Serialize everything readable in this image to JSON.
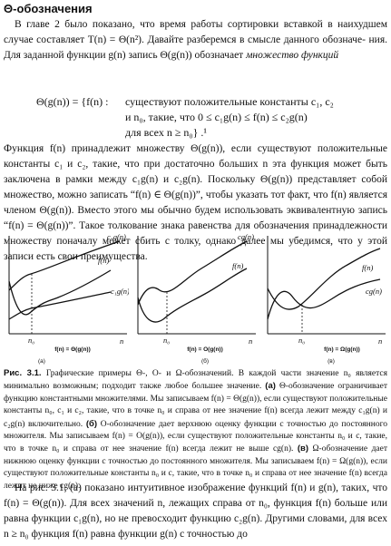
{
  "heading": "Θ-обозначения",
  "intro": {
    "line1": "В главе 2 было показано, что время работы сортировки вставкой в наихудшем",
    "line2": "случае составляет T(n) = Θ(n²). Давайте разберемся в смысле данного обозначе-",
    "line3_a": "ния. Для заданной функции g(n) запись Θ(g(n)) обозначает ",
    "line3_em": "множество функций"
  },
  "formula": {
    "lhs": "Θ(g(n)) = {f(n) :",
    "line1": "существуют положительные константы c₁, c₂",
    "line2": "и n₀, такие, что 0 ≤ c₁g(n) ≤ f(n) ≤ c₂g(n)",
    "line3": "для всех n ≥ n₀} .¹"
  },
  "para2": "Функция f(n) принадлежит множеству Θ(g(n)), если существуют положитель­ные константы c₁ и c₂, такие, что при достаточно больших n эта функция может быть заключена в рамки между c₁g(n) и c₂g(n). Поскольку Θ(g(n)) представля­ет собой множество, можно записать “f(n) ∈ Θ(g(n))”, чтобы указать тот факт, что f(n) является членом Θ(g(n)). Вместо этого мы обычно будем использовать эквивалентную запись “f(n) = Θ(g(n))”. Такое толкование знака равенства для обозначения принадлежности множеству поначалу может сбить с толку, однако далее мы убедимся, что у этой записи есть свои преимущества.",
  "figures": [
    {
      "panel": "(а)",
      "curve_labels": [
        "c₂g(n)",
        "f(n)",
        "c₁g(n)"
      ],
      "n0": "n₀",
      "n": "n",
      "relation": "f(n) = Θ(g(n))"
    },
    {
      "panel": "(б)",
      "curve_labels": [
        "cg(n)",
        "f(n)"
      ],
      "n0": "n₀",
      "n": "n",
      "relation": "f(n) = O(g(n))"
    },
    {
      "panel": "(в)",
      "curve_labels": [
        "f(n)",
        "cg(n)"
      ],
      "n0": "n₀",
      "n": "n",
      "relation": "f(n) = Ω(g(n))"
    }
  ],
  "caption": {
    "label": "Рис. 3.1.",
    "text_a": " Графические примеры Θ-, O- и Ω-обозначений. В каждой части значение n₀ является минимально возможным; подходит также любое большее значение. ",
    "bold_a": "(а)",
    "text_b": " Θ-обозначение ограничи­вает функцию константными множителями. Мы записываем f(n) = Θ(g(n)), если существуют положительные константы n₀, c₁ и c₂, такие, что в точке n₀ и справа от нее значение f(n) всегда лежит между c₁g(n) и c₂g(n) включительно. ",
    "bold_b": "(б)",
    "text_c": " O-обозначение дает верхнюю оценку функции с точностью до постоянного множителя. Мы записываем f(n) = O(g(n)), если существуют поло­жительные константы n₀ и c, такие, что в точке n₀ и справа от нее значение f(n) всегда лежит не выше cg(n). ",
    "bold_c": "(в)",
    "text_d": " Ω-обозначение дает нижнюю оценку функции с точностью до постоянного множите­ля. Мы записываем f(n) = Ω(g(n)), если существуют положительные константы n₀ и c, такие, что в точке n₀ и справа от нее значение f(n) всегда лежит не ниже cg(n)."
  },
  "para3": "На рис. 3.1, (а) показано интуитивное изображение функций f(n) и g(n), таких, что f(n) = Θ(g(n)). Для всех значений n, лежащих справа от n₀, функция f(n) больше или равна функции c₁g(n), но не превосходит функцию c₂g(n). Другими словами, для всех n ≥ n₀ функция f(n) равна функции g(n) с точностью до"
}
